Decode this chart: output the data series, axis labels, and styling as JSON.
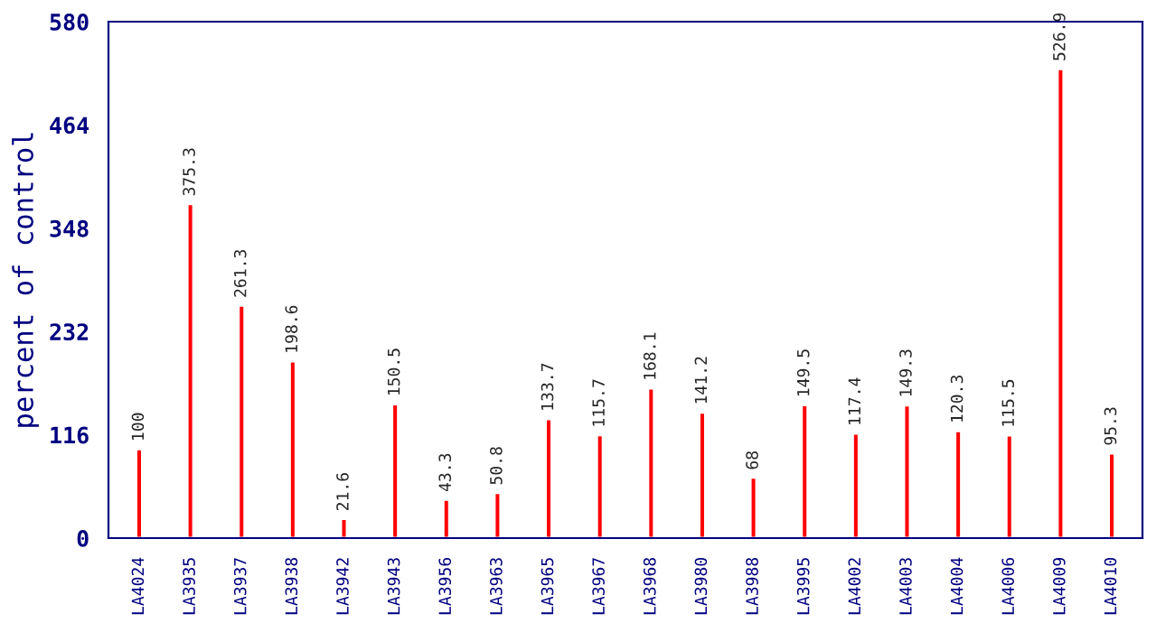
{
  "chart_data": {
    "type": "bar",
    "ylabel": "percent of control",
    "categories": [
      "LA4024",
      "LA3935",
      "LA3937",
      "LA3938",
      "LA3942",
      "LA3943",
      "LA3956",
      "LA3963",
      "LA3965",
      "LA3967",
      "LA3968",
      "LA3980",
      "LA3988",
      "LA3995",
      "LA4002",
      "LA4003",
      "LA4004",
      "LA4006",
      "LA4009",
      "LA4010"
    ],
    "values": [
      100,
      375.3,
      261.3,
      198.6,
      21.6,
      150.5,
      43.3,
      50.8,
      133.7,
      115.7,
      168.1,
      141.2,
      68,
      149.5,
      117.4,
      149.3,
      120.3,
      115.5,
      526.9,
      95.3
    ],
    "color": "#ff0000",
    "data_labels": true,
    "ylim": [
      0,
      580
    ],
    "yticks": [
      0,
      116,
      232,
      348,
      464,
      580
    ],
    "grid": false,
    "legend": false
  }
}
